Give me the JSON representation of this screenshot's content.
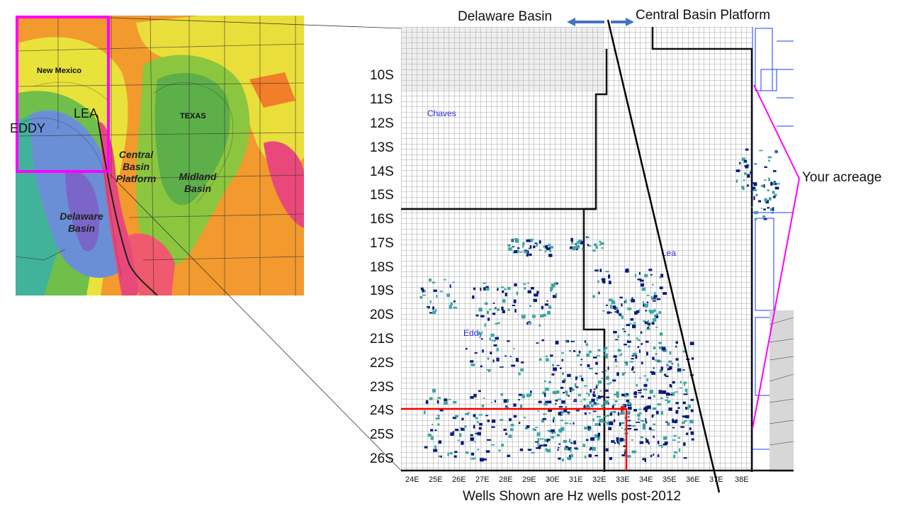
{
  "overview_map": {
    "state_labels": [
      "New Mexico",
      "TEXAS"
    ],
    "counties": [
      "LEA",
      "EDDY"
    ],
    "basins": [
      {
        "line1": "Central",
        "line2": "Basin",
        "line3": "Platform"
      },
      {
        "line1": "Midland",
        "line2": "Basin"
      },
      {
        "line1": "Delaware",
        "line2": "Basin"
      }
    ],
    "highlight_color": "#ff00ff"
  },
  "detail_map": {
    "top_left_label": "Delaware Basin",
    "top_right_label": "Central Basin Platform",
    "arrow_color": "#4472c4",
    "county_labels": [
      "Chaves",
      "Lea",
      "Eddy"
    ],
    "acreage_label": "Your acreage",
    "acreage_color": "#ff00ff",
    "township_rows": [
      "10S",
      "11S",
      "12S",
      "13S",
      "14S",
      "15S",
      "16S",
      "17S",
      "18S",
      "19S",
      "20S",
      "21S",
      "22S",
      "23S",
      "24S",
      "25S",
      "26S"
    ],
    "range_cols": [
      "24E",
      "25E",
      "26E",
      "27E",
      "28E",
      "29E",
      "30E",
      "31E",
      "32E",
      "33E",
      "34E",
      "35E",
      "36E",
      "37E",
      "38E"
    ],
    "footnote": "Wells Shown are Hz wells post-2012",
    "highlight_line_color": "#ff0000"
  }
}
